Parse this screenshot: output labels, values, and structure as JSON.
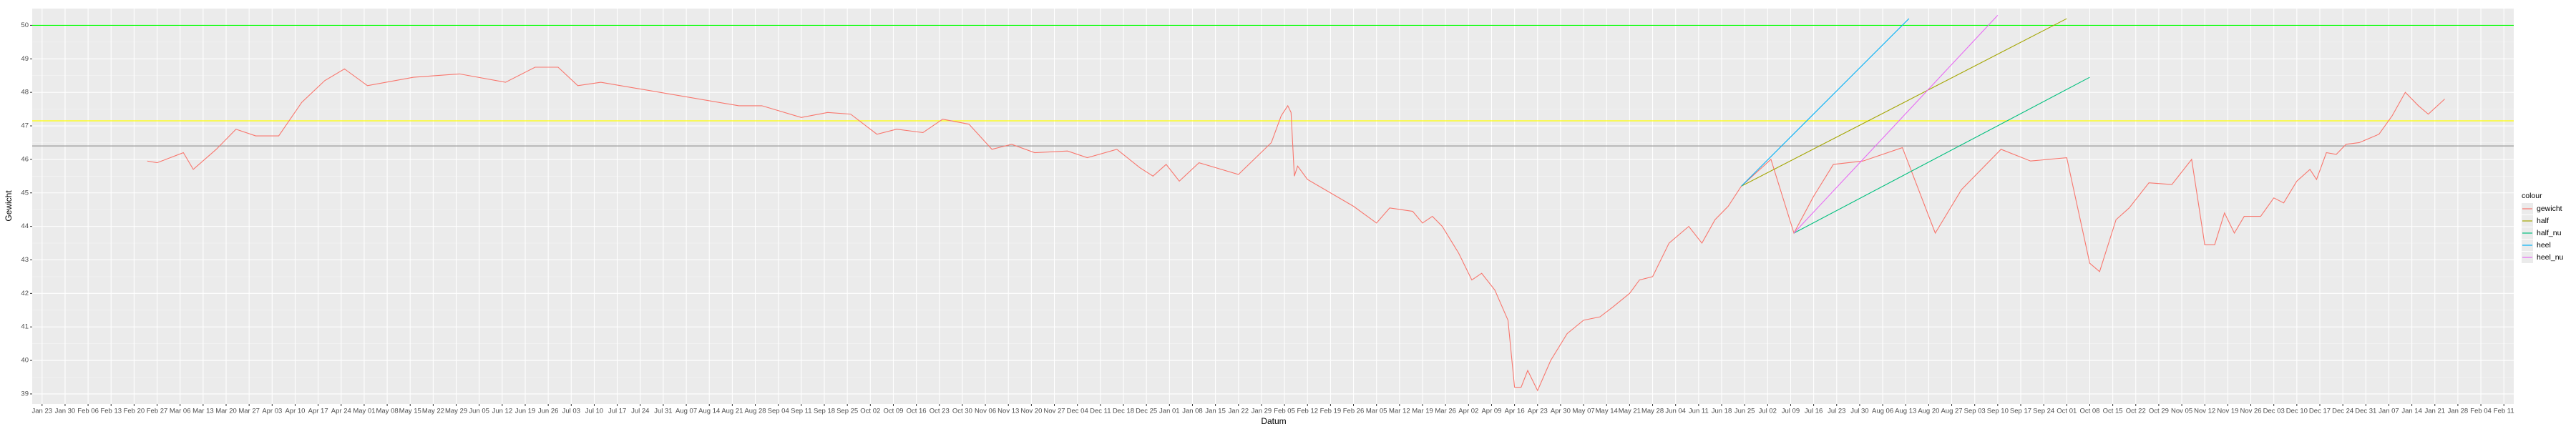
{
  "chart_data": {
    "type": "line",
    "x_label": "Datum",
    "y_label": "Gewicht",
    "legend_title": "colour",
    "legend_position": "right",
    "grid": true,
    "ylim": [
      38.7,
      50.5
    ],
    "yticks": [
      39,
      40,
      41,
      42,
      43,
      44,
      45,
      46,
      47,
      48,
      49,
      50
    ],
    "xlim": [
      "Jan 20",
      "Feb 14"
    ],
    "xticks": [
      "Jan 23",
      "Jan 30",
      "Feb 06",
      "Feb 13",
      "Feb 20",
      "Feb 27",
      "Mar 06",
      "Mar 13",
      "Mar 20",
      "Mar 27",
      "Apr 03",
      "Apr 10",
      "Apr 17",
      "Apr 24",
      "May 01",
      "May 08",
      "May 15",
      "May 22",
      "May 29",
      "Jun 05",
      "Jun 12",
      "Jun 19",
      "Jun 26",
      "Jul 03",
      "Jul 10",
      "Jul 17",
      "Jul 24",
      "Jul 31",
      "Aug 07",
      "Aug 14",
      "Aug 21",
      "Aug 28",
      "Sep 04",
      "Sep 11",
      "Sep 18",
      "Sep 25",
      "Oct 02",
      "Oct 09",
      "Oct 16",
      "Oct 23",
      "Oct 30",
      "Nov 06",
      "Nov 13",
      "Nov 20",
      "Nov 27",
      "Dec 04",
      "Dec 11",
      "Dec 18",
      "Dec 25",
      "Jan 01",
      "Jan 08",
      "Jan 15",
      "Jan 22",
      "Jan 29",
      "Feb 05",
      "Feb 12",
      "Feb 19",
      "Feb 26",
      "Mar 05",
      "Mar 12",
      "Mar 19",
      "Mar 26",
      "Apr 02",
      "Apr 09",
      "Apr 16",
      "Apr 23",
      "Apr 30",
      "May 07",
      "May 14",
      "May 21",
      "May 28",
      "Jun 04",
      "Jun 11",
      "Jun 18",
      "Jun 25",
      "Jul 02",
      "Jul 09",
      "Jul 16",
      "Jul 23",
      "Jul 30",
      "Aug 06",
      "Aug 13",
      "Aug 20",
      "Aug 27",
      "Sep 03",
      "Sep 10",
      "Sep 17",
      "Sep 24",
      "Oct 01",
      "Oct 08",
      "Oct 15",
      "Oct 22",
      "Oct 29",
      "Nov 05",
      "Nov 12",
      "Nov 19",
      "Nov 26",
      "Dec 03",
      "Dec 10",
      "Dec 17",
      "Dec 24",
      "Dec 31",
      "Jan 07",
      "Jan 14",
      "Jan 21",
      "Jan 28",
      "Feb 04",
      "Feb 11"
    ],
    "hlines": [
      {
        "value": 50,
        "color": "#00ff00"
      },
      {
        "value": 47.15,
        "color": "#ffff00"
      },
      {
        "value": 46.4,
        "color": "#999999"
      }
    ],
    "series": [
      {
        "name": "gewicht",
        "color": "#F8766D",
        "x": [
          "Feb 24",
          "Feb 27",
          "Mar 07",
          "Mar 10",
          "Mar 17",
          "Mar 23",
          "Mar 29",
          "Apr 05",
          "Apr 12",
          "Apr 19",
          "Apr 25",
          "May 02",
          "May 16",
          "May 30",
          "Jun 13",
          "Jun 22",
          "Jun 29",
          "Jul 05",
          "Jul 12",
          "Aug 23",
          "Aug 30",
          "Sep 11",
          "Sep 19",
          "Sep 26",
          "Oct 04",
          "Oct 10",
          "Oct 18",
          "Oct 24",
          "Nov 01",
          "Nov 08",
          "Nov 14",
          "Nov 21",
          "Dec 01",
          "Dec 07",
          "Dec 16",
          "Dec 23",
          "Dec 27",
          "Dec 31",
          "Jan 04",
          "Jan 10",
          "Jan 22",
          "Feb 01",
          "Feb 04",
          "Feb 06",
          "Feb 07",
          "Feb 08",
          "Feb 09",
          "Feb 12",
          "Feb 19",
          "Feb 26",
          "Mar 05",
          "Mar 09",
          "Mar 16",
          "Mar 19",
          "Mar 22",
          "Mar 25",
          "Mar 30",
          "Apr 03",
          "Apr 06",
          "Apr 10",
          "Apr 14",
          "Apr 16",
          "Apr 18",
          "Apr 20",
          "Apr 23",
          "Apr 27",
          "May 02",
          "May 07",
          "May 12",
          "May 16",
          "May 21",
          "May 24",
          "May 28",
          "Jun 02",
          "Jun 08",
          "Jun 12",
          "Jun 16",
          "Jun 20",
          "Jun 24",
          "Jul 03",
          "Jul 10",
          "Jul 16",
          "Jul 22",
          "Jul 31",
          "Aug 12",
          "Aug 22",
          "Aug 30",
          "Sep 11",
          "Sep 20",
          "Oct 01",
          "Oct 08",
          "Oct 11",
          "Oct 16",
          "Oct 20",
          "Oct 26",
          "Nov 02",
          "Nov 08",
          "Nov 12",
          "Nov 15",
          "Nov 18",
          "Nov 21",
          "Nov 24",
          "Nov 29",
          "Dec 03",
          "Dec 06",
          "Dec 10",
          "Dec 14",
          "Dec 16",
          "Dec 19",
          "Dec 22",
          "Dec 25",
          "Dec 29",
          "Jan 04",
          "Jan 08",
          "Jan 12",
          "Jan 16",
          "Jan 19",
          "Jan 24"
        ],
        "values": [
          45.95,
          45.9,
          46.2,
          45.7,
          46.3,
          46.9,
          46.7,
          46.7,
          47.7,
          48.35,
          48.7,
          48.2,
          48.45,
          48.55,
          48.3,
          48.75,
          48.75,
          48.2,
          48.3,
          47.6,
          47.6,
          47.25,
          47.4,
          47.35,
          46.75,
          46.9,
          46.8,
          47.2,
          47.05,
          46.3,
          46.45,
          46.2,
          46.25,
          46.05,
          46.3,
          45.75,
          45.5,
          45.85,
          45.35,
          45.9,
          45.55,
          46.5,
          47.3,
          47.6,
          47.4,
          45.5,
          45.8,
          45.4,
          45.0,
          44.6,
          44.1,
          44.55,
          44.45,
          44.1,
          44.3,
          44.0,
          43.2,
          42.4,
          42.6,
          42.1,
          41.2,
          39.2,
          39.2,
          39.7,
          39.1,
          40.0,
          40.8,
          41.2,
          41.3,
          41.6,
          42.0,
          42.4,
          42.5,
          43.5,
          44.0,
          43.5,
          44.2,
          44.6,
          45.2,
          46.0,
          43.8,
          44.9,
          45.85,
          45.95,
          46.35,
          43.8,
          45.1,
          46.3,
          45.95,
          46.05,
          42.9,
          42.65,
          44.2,
          44.55,
          45.3,
          45.25,
          46.0,
          43.45,
          43.45,
          44.4,
          43.8,
          44.3,
          44.3,
          44.85,
          44.7,
          45.35,
          45.7,
          45.4,
          46.2,
          46.15,
          46.45,
          46.5,
          46.75,
          47.3,
          48.0,
          47.6,
          47.35,
          47.8
        ]
      },
      {
        "name": "half",
        "color": "#A3A500",
        "x": [
          "Jun 24",
          "Oct 01"
        ],
        "values": [
          45.2,
          50.2
        ]
      },
      {
        "name": "half_nu",
        "color": "#00BF7D",
        "x": [
          "Jul 10",
          "Oct 08"
        ],
        "values": [
          43.8,
          48.45
        ]
      },
      {
        "name": "heel",
        "color": "#00B0F6",
        "x": [
          "Jun 24",
          "Aug 14"
        ],
        "values": [
          45.2,
          50.2
        ]
      },
      {
        "name": "heel_nu",
        "color": "#E76BF3",
        "x": [
          "Jul 10",
          "Sep 10"
        ],
        "values": [
          43.8,
          50.3
        ]
      }
    ]
  }
}
